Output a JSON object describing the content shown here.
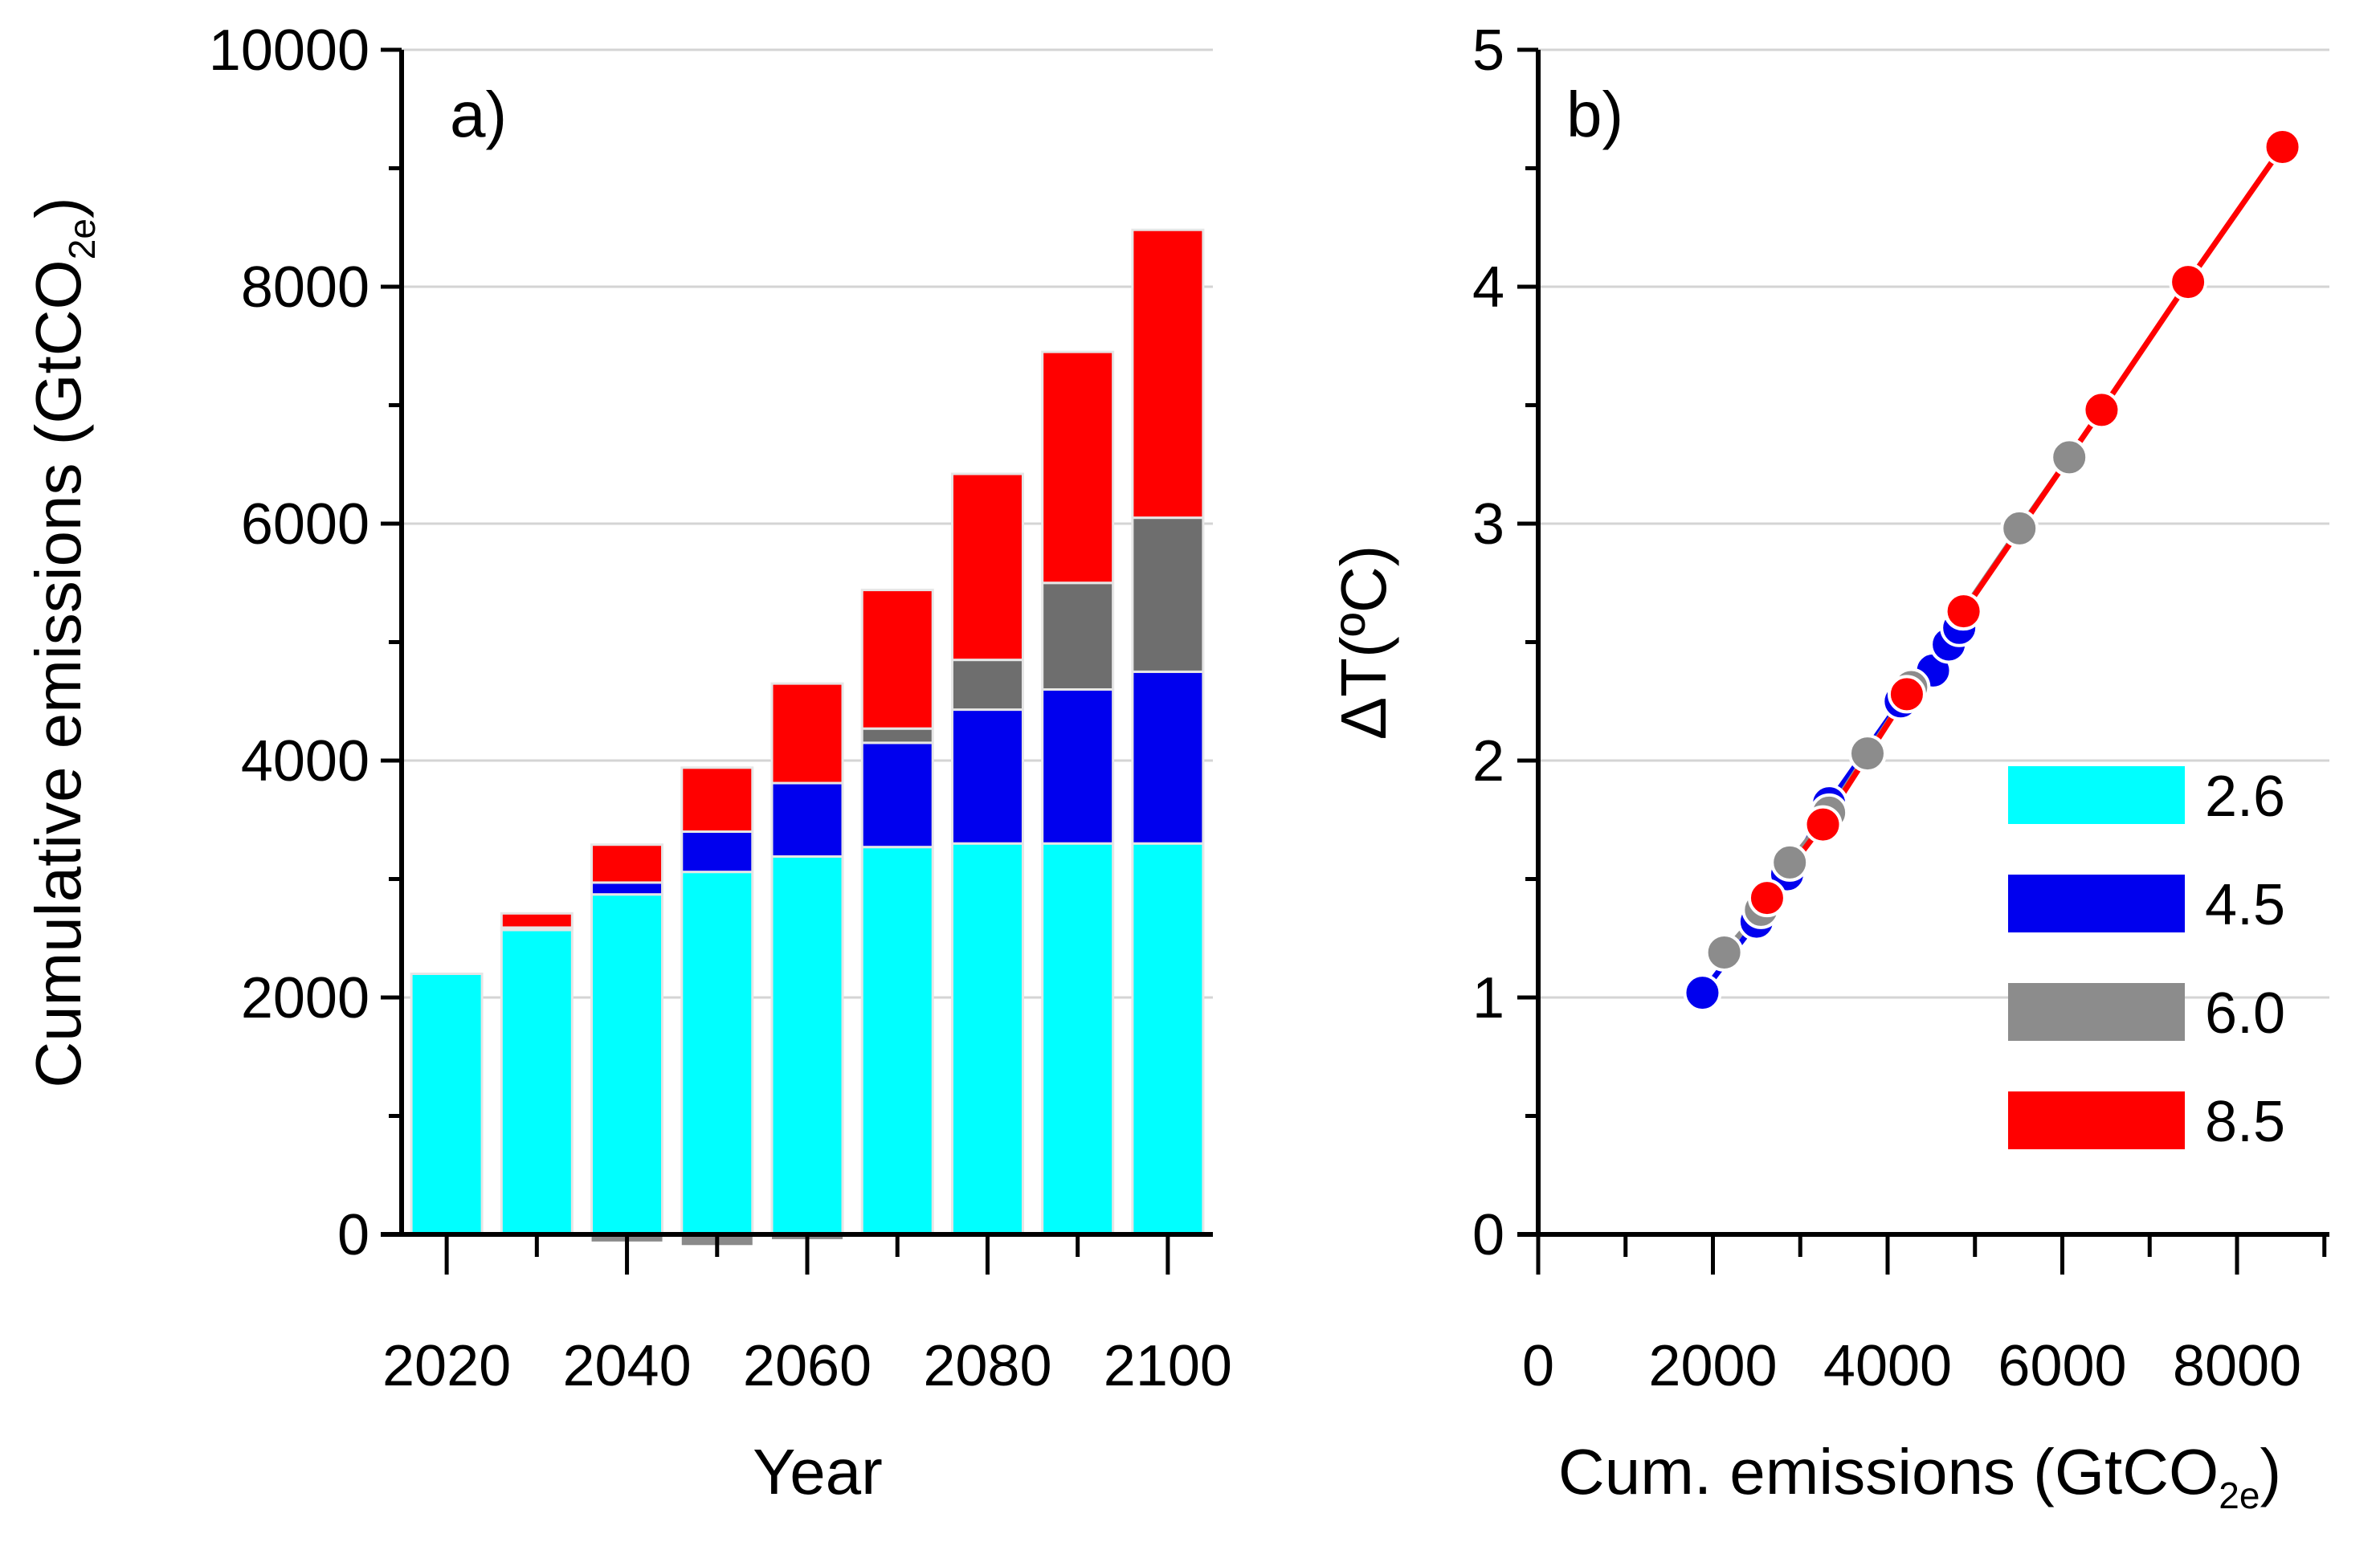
{
  "chart_data": [
    {
      "type": "bar",
      "stacked": true,
      "panel_label": "a)",
      "title": "",
      "xlabel": "Year",
      "ylabel_main": "Cumulative emissions (GtCO",
      "ylabel_sub": "2e",
      "ylabel_close": ")",
      "categories": [
        "2020",
        "2030",
        "2040",
        "2050",
        "2060",
        "2070",
        "2080",
        "2090",
        "2100"
      ],
      "x_tick_labels": [
        "2020",
        "2040",
        "2060",
        "2080",
        "2100"
      ],
      "ylim": [
        0,
        10000
      ],
      "yticks": [
        "0",
        "2000",
        "4000",
        "6000",
        "8000",
        "10000"
      ],
      "grid": true,
      "series": [
        {
          "name": "2.6",
          "color": "#00FFFF",
          "values": [
            2200,
            2570,
            2870,
            3060,
            3190,
            3270,
            3300,
            3300,
            3300
          ]
        },
        {
          "name": "4.5",
          "color": "#0000EE",
          "values": [
            0,
            20,
            100,
            340,
            620,
            880,
            1130,
            1300,
            1450
          ]
        },
        {
          "name": "6.0",
          "color": "#6E6E6E",
          "values": [
            0,
            0,
            0,
            0,
            0,
            120,
            420,
            900,
            1300
          ]
        },
        {
          "name": "8.5",
          "color": "#FF0000",
          "values": [
            0,
            120,
            320,
            540,
            840,
            1170,
            1570,
            1950,
            2430
          ]
        }
      ],
      "negative_values": {
        "name": "6.0",
        "color": "#8A8A8A",
        "values": [
          0,
          0,
          -60,
          -90,
          -40,
          0,
          0,
          0,
          0
        ]
      }
    },
    {
      "type": "scatter",
      "panel_label": "b)",
      "title": "",
      "xlabel_main": "Cum. emissions (GtCO",
      "xlabel_sub": "2e",
      "xlabel_close": ")",
      "ylabel": "ΔT(ºC)",
      "xlim": [
        0,
        9000
      ],
      "ylim": [
        0,
        5
      ],
      "xticks": [
        "0",
        "2000",
        "4000",
        "6000",
        "8000"
      ],
      "yticks": [
        "0",
        "1",
        "2",
        "3",
        "4",
        "5"
      ],
      "grid": true,
      "series": [
        {
          "name": "2.6",
          "color": "#00FFFF",
          "points": []
        },
        {
          "name": "4.5",
          "color": "#0000EE",
          "points": [
            [
              1880,
              1.02
            ],
            [
              2500,
              1.32
            ],
            [
              2850,
              1.52
            ],
            [
              3330,
              1.82
            ],
            [
              4150,
              2.25
            ],
            [
              4520,
              2.38
            ],
            [
              4700,
              2.49
            ],
            [
              4820,
              2.56
            ]
          ]
        },
        {
          "name": "6.0",
          "color": "#8C8C8C",
          "points": [
            [
              2130,
              1.19
            ],
            [
              2550,
              1.37
            ],
            [
              2880,
              1.57
            ],
            [
              3330,
              1.78
            ],
            [
              3770,
              2.03
            ],
            [
              4270,
              2.31
            ],
            [
              4860,
              2.63
            ],
            [
              5510,
              2.98
            ],
            [
              6080,
              3.28
            ]
          ]
        },
        {
          "name": "8.5",
          "color": "#FF0000",
          "points": [
            [
              2620,
              1.42
            ],
            [
              3260,
              1.73
            ],
            [
              4220,
              2.28
            ],
            [
              4870,
              2.63
            ],
            [
              6450,
              3.48
            ],
            [
              7440,
              4.02
            ],
            [
              8520,
              4.59
            ]
          ]
        }
      ],
      "legend": [
        "2.6",
        "4.5",
        "6.0",
        "8.5"
      ],
      "legend_location": "lower-right"
    }
  ]
}
